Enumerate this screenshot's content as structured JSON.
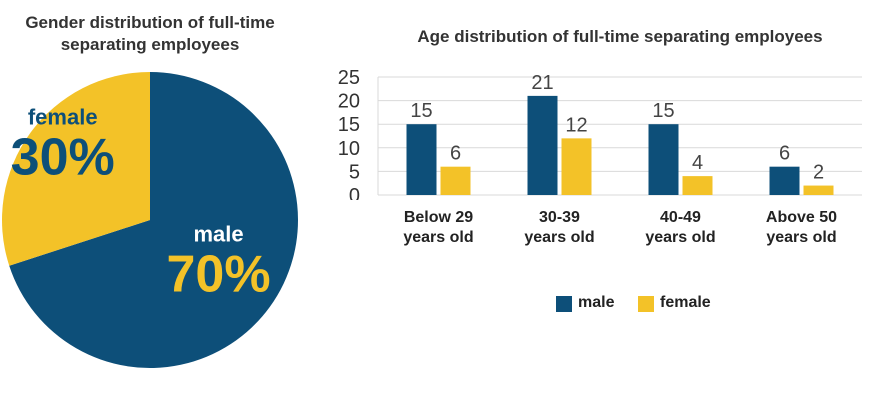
{
  "colors": {
    "male": "#0d4f79",
    "female": "#f3c228",
    "female_text": "#0d4f79",
    "male_text": "#ffffff"
  },
  "chart_data": [
    {
      "type": "pie",
      "title": "Gender distribution of full-time separating employees",
      "slices": [
        {
          "name": "male",
          "value": 70,
          "label": "70%"
        },
        {
          "name": "female",
          "value": 30,
          "label": "30%"
        }
      ]
    },
    {
      "type": "bar",
      "title": "Age distribution of full-time separating employees",
      "categories": [
        "Below 29 years old",
        "30-39 years old",
        "40-49 years old",
        "Above 50 years old"
      ],
      "category_lines": [
        [
          "Below 29",
          "years old"
        ],
        [
          "30-39",
          "years old"
        ],
        [
          "40-49",
          "years old"
        ],
        [
          "Above 50",
          "years old"
        ]
      ],
      "series": [
        {
          "name": "male",
          "values": [
            15,
            21,
            15,
            6
          ]
        },
        {
          "name": "female",
          "values": [
            6,
            12,
            4,
            2
          ]
        }
      ],
      "ylim": [
        0,
        25
      ],
      "yticks": [
        0,
        5,
        10,
        15,
        20,
        25
      ],
      "grid": true,
      "legend_position": "bottom"
    }
  ]
}
